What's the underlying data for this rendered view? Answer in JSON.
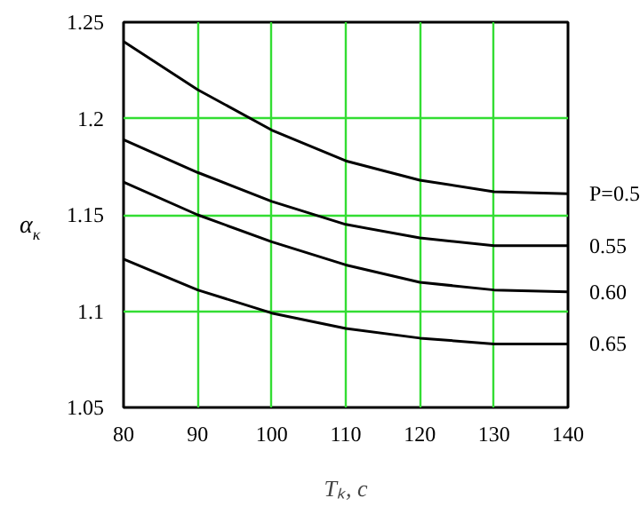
{
  "chart_data": {
    "type": "line",
    "xlabel": "Tₖ, c",
    "ylabel": "α$_{κ}$",
    "x": [
      80,
      90,
      100,
      110,
      120,
      130,
      140
    ],
    "series": [
      {
        "name": "P=0.5",
        "color": "#000000",
        "values": [
          1.24,
          1.215,
          1.194,
          1.178,
          1.168,
          1.162,
          1.161
        ]
      },
      {
        "name": "0.55",
        "color": "#000000",
        "values": [
          1.189,
          1.172,
          1.157,
          1.145,
          1.138,
          1.134,
          1.134
        ]
      },
      {
        "name": "0.60",
        "color": "#000000",
        "values": [
          1.167,
          1.15,
          1.136,
          1.124,
          1.115,
          1.111,
          1.11
        ]
      },
      {
        "name": "0.65",
        "color": "#000000",
        "values": [
          1.127,
          1.111,
          1.099,
          1.091,
          1.086,
          1.083,
          1.083
        ]
      }
    ],
    "xlim": [
      80,
      140
    ],
    "ylim": [
      1.05,
      1.25
    ],
    "xticks": [
      80,
      90,
      100,
      110,
      120,
      130,
      140
    ],
    "yticks": [
      1.05,
      1.1,
      1.15,
      1.2,
      1.25
    ],
    "grid": true,
    "marker": "none",
    "line_style": "solid"
  }
}
